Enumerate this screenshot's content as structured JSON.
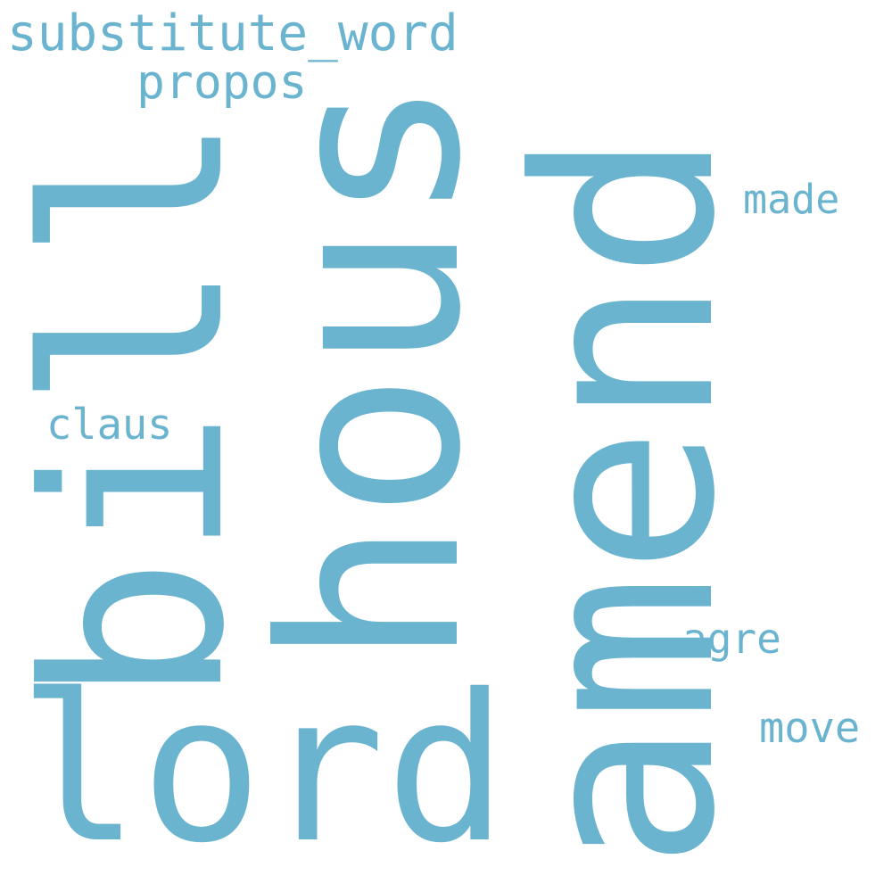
{
  "cloud": {
    "color": "#6ab4cf",
    "words": [
      {
        "key": "substitute_word",
        "text": "substitute_word"
      },
      {
        "key": "propos",
        "text": "propos"
      },
      {
        "key": "made",
        "text": "made"
      },
      {
        "key": "claus",
        "text": "claus"
      },
      {
        "key": "agre",
        "text": "agre"
      },
      {
        "key": "move",
        "text": "move"
      },
      {
        "key": "lord",
        "text": "lord"
      },
      {
        "key": "bill",
        "text": "bill"
      },
      {
        "key": "hous",
        "text": "hous"
      },
      {
        "key": "amend",
        "text": "amend"
      }
    ]
  }
}
